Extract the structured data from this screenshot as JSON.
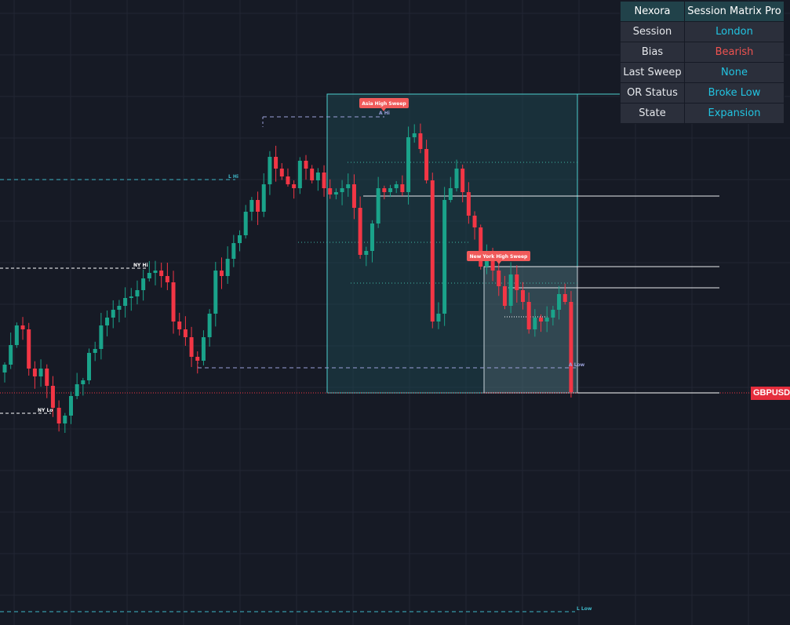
{
  "matrix": {
    "brand": "Nexora",
    "title": "Session Matrix Pro",
    "rows": [
      {
        "label": "Session",
        "value": "London",
        "color": "#22c3e0"
      },
      {
        "label": "Bias",
        "value": "Bearish",
        "color": "#ef5350"
      },
      {
        "label": "Last Sweep",
        "value": "None",
        "color": "#22c3e0"
      },
      {
        "label": "OR Status",
        "value": "Broke Low",
        "color": "#22c3e0"
      },
      {
        "label": "State",
        "value": "Expansion",
        "color": "#22c3e0"
      }
    ]
  },
  "symbol": "GBPUSD",
  "labels": {
    "asia_sweep": "Asia High Sweep",
    "ny_sweep": "New York High Sweep",
    "asia_high": "A Hi",
    "asia_low": "A Low",
    "london_high": "L Hi",
    "london_low": "L Low",
    "ny_high": "NY Hi",
    "ny_low": "NY Lo"
  },
  "colors": {
    "bull": "#1aa38a",
    "bear": "#f23645",
    "background": "#161a25",
    "session_box": "#4dd0d0"
  }
}
